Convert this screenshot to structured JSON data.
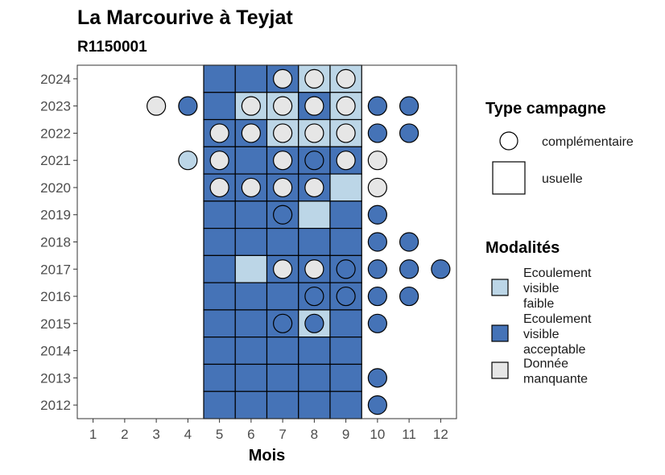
{
  "chart_data": {
    "type": "heatmap",
    "title": "La Marcourive à Teyjat",
    "subtitle": "R1150001",
    "xlabel": "Mois",
    "ylabel": "",
    "x_ticks": [
      "1",
      "2",
      "3",
      "4",
      "5",
      "6",
      "7",
      "8",
      "9",
      "10",
      "11",
      "12"
    ],
    "y_ticks": [
      "2012",
      "2013",
      "2014",
      "2015",
      "2016",
      "2017",
      "2018",
      "2019",
      "2020",
      "2021",
      "2022",
      "2023",
      "2024"
    ],
    "colors": {
      "Ecoulement visible faible": "#bcd6e7",
      "Ecoulement visible acceptable": "#4573b7",
      "Donnée manquante": "#e6e6e6"
    },
    "tiles": [
      {
        "year": 2024,
        "month": 5,
        "modalite": "Ecoulement visible acceptable"
      },
      {
        "year": 2024,
        "month": 6,
        "modalite": "Ecoulement visible acceptable"
      },
      {
        "year": 2024,
        "month": 7,
        "modalite": "Ecoulement visible acceptable"
      },
      {
        "year": 2024,
        "month": 8,
        "modalite": "Ecoulement visible faible"
      },
      {
        "year": 2024,
        "month": 9,
        "modalite": "Ecoulement visible faible"
      },
      {
        "year": 2023,
        "month": 5,
        "modalite": "Ecoulement visible acceptable"
      },
      {
        "year": 2023,
        "month": 6,
        "modalite": "Ecoulement visible faible"
      },
      {
        "year": 2023,
        "month": 7,
        "modalite": "Ecoulement visible faible"
      },
      {
        "year": 2023,
        "month": 8,
        "modalite": "Ecoulement visible acceptable"
      },
      {
        "year": 2023,
        "month": 9,
        "modalite": "Ecoulement visible faible"
      },
      {
        "year": 2022,
        "month": 5,
        "modalite": "Ecoulement visible acceptable"
      },
      {
        "year": 2022,
        "month": 6,
        "modalite": "Ecoulement visible acceptable"
      },
      {
        "year": 2022,
        "month": 7,
        "modalite": "Ecoulement visible faible"
      },
      {
        "year": 2022,
        "month": 8,
        "modalite": "Ecoulement visible faible"
      },
      {
        "year": 2022,
        "month": 9,
        "modalite": "Ecoulement visible faible"
      },
      {
        "year": 2021,
        "month": 5,
        "modalite": "Ecoulement visible acceptable"
      },
      {
        "year": 2021,
        "month": 6,
        "modalite": "Ecoulement visible acceptable"
      },
      {
        "year": 2021,
        "month": 7,
        "modalite": "Ecoulement visible acceptable"
      },
      {
        "year": 2021,
        "month": 8,
        "modalite": "Ecoulement visible acceptable"
      },
      {
        "year": 2021,
        "month": 9,
        "modalite": "Ecoulement visible acceptable"
      },
      {
        "year": 2020,
        "month": 5,
        "modalite": "Ecoulement visible acceptable"
      },
      {
        "year": 2020,
        "month": 6,
        "modalite": "Ecoulement visible acceptable"
      },
      {
        "year": 2020,
        "month": 7,
        "modalite": "Ecoulement visible acceptable"
      },
      {
        "year": 2020,
        "month": 8,
        "modalite": "Ecoulement visible acceptable"
      },
      {
        "year": 2020,
        "month": 9,
        "modalite": "Ecoulement visible faible"
      },
      {
        "year": 2019,
        "month": 5,
        "modalite": "Ecoulement visible acceptable"
      },
      {
        "year": 2019,
        "month": 6,
        "modalite": "Ecoulement visible acceptable"
      },
      {
        "year": 2019,
        "month": 7,
        "modalite": "Ecoulement visible acceptable"
      },
      {
        "year": 2019,
        "month": 8,
        "modalite": "Ecoulement visible faible"
      },
      {
        "year": 2019,
        "month": 9,
        "modalite": "Ecoulement visible acceptable"
      },
      {
        "year": 2018,
        "month": 5,
        "modalite": "Ecoulement visible acceptable"
      },
      {
        "year": 2018,
        "month": 6,
        "modalite": "Ecoulement visible acceptable"
      },
      {
        "year": 2018,
        "month": 7,
        "modalite": "Ecoulement visible acceptable"
      },
      {
        "year": 2018,
        "month": 8,
        "modalite": "Ecoulement visible acceptable"
      },
      {
        "year": 2018,
        "month": 9,
        "modalite": "Ecoulement visible acceptable"
      },
      {
        "year": 2017,
        "month": 5,
        "modalite": "Ecoulement visible acceptable"
      },
      {
        "year": 2017,
        "month": 6,
        "modalite": "Ecoulement visible faible"
      },
      {
        "year": 2017,
        "month": 7,
        "modalite": "Ecoulement visible acceptable"
      },
      {
        "year": 2017,
        "month": 8,
        "modalite": "Ecoulement visible acceptable"
      },
      {
        "year": 2017,
        "month": 9,
        "modalite": "Ecoulement visible acceptable"
      },
      {
        "year": 2016,
        "month": 5,
        "modalite": "Ecoulement visible acceptable"
      },
      {
        "year": 2016,
        "month": 6,
        "modalite": "Ecoulement visible acceptable"
      },
      {
        "year": 2016,
        "month": 7,
        "modalite": "Ecoulement visible acceptable"
      },
      {
        "year": 2016,
        "month": 8,
        "modalite": "Ecoulement visible acceptable"
      },
      {
        "year": 2016,
        "month": 9,
        "modalite": "Ecoulement visible acceptable"
      },
      {
        "year": 2015,
        "month": 5,
        "modalite": "Ecoulement visible acceptable"
      },
      {
        "year": 2015,
        "month": 6,
        "modalite": "Ecoulement visible acceptable"
      },
      {
        "year": 2015,
        "month": 7,
        "modalite": "Ecoulement visible acceptable"
      },
      {
        "year": 2015,
        "month": 8,
        "modalite": "Ecoulement visible faible"
      },
      {
        "year": 2015,
        "month": 9,
        "modalite": "Ecoulement visible acceptable"
      },
      {
        "year": 2014,
        "month": 5,
        "modalite": "Ecoulement visible acceptable"
      },
      {
        "year": 2014,
        "month": 6,
        "modalite": "Ecoulement visible acceptable"
      },
      {
        "year": 2014,
        "month": 7,
        "modalite": "Ecoulement visible acceptable"
      },
      {
        "year": 2014,
        "month": 8,
        "modalite": "Ecoulement visible acceptable"
      },
      {
        "year": 2014,
        "month": 9,
        "modalite": "Ecoulement visible acceptable"
      },
      {
        "year": 2013,
        "month": 5,
        "modalite": "Ecoulement visible acceptable"
      },
      {
        "year": 2013,
        "month": 6,
        "modalite": "Ecoulement visible acceptable"
      },
      {
        "year": 2013,
        "month": 7,
        "modalite": "Ecoulement visible acceptable"
      },
      {
        "year": 2013,
        "month": 8,
        "modalite": "Ecoulement visible acceptable"
      },
      {
        "year": 2013,
        "month": 9,
        "modalite": "Ecoulement visible acceptable"
      },
      {
        "year": 2012,
        "month": 5,
        "modalite": "Ecoulement visible acceptable"
      },
      {
        "year": 2012,
        "month": 6,
        "modalite": "Ecoulement visible acceptable"
      },
      {
        "year": 2012,
        "month": 7,
        "modalite": "Ecoulement visible acceptable"
      },
      {
        "year": 2012,
        "month": 8,
        "modalite": "Ecoulement visible acceptable"
      },
      {
        "year": 2012,
        "month": 9,
        "modalite": "Ecoulement visible acceptable"
      }
    ],
    "points": [
      {
        "year": 2024,
        "month": 7,
        "modalite": "Donnée manquante"
      },
      {
        "year": 2024,
        "month": 8,
        "modalite": "Donnée manquante"
      },
      {
        "year": 2024,
        "month": 9,
        "modalite": "Donnée manquante"
      },
      {
        "year": 2023,
        "month": 3,
        "modalite": "Donnée manquante"
      },
      {
        "year": 2023,
        "month": 4,
        "modalite": "Ecoulement visible acceptable"
      },
      {
        "year": 2023,
        "month": 6,
        "modalite": "Donnée manquante"
      },
      {
        "year": 2023,
        "month": 7,
        "modalite": "Donnée manquante"
      },
      {
        "year": 2023,
        "month": 8,
        "modalite": "Donnée manquante"
      },
      {
        "year": 2023,
        "month": 9,
        "modalite": "Donnée manquante"
      },
      {
        "year": 2023,
        "month": 10,
        "modalite": "Ecoulement visible acceptable"
      },
      {
        "year": 2023,
        "month": 11,
        "modalite": "Ecoulement visible acceptable"
      },
      {
        "year": 2022,
        "month": 5,
        "modalite": "Donnée manquante"
      },
      {
        "year": 2022,
        "month": 6,
        "modalite": "Donnée manquante"
      },
      {
        "year": 2022,
        "month": 7,
        "modalite": "Donnée manquante"
      },
      {
        "year": 2022,
        "month": 8,
        "modalite": "Donnée manquante"
      },
      {
        "year": 2022,
        "month": 9,
        "modalite": "Donnée manquante"
      },
      {
        "year": 2022,
        "month": 10,
        "modalite": "Ecoulement visible acceptable"
      },
      {
        "year": 2022,
        "month": 11,
        "modalite": "Ecoulement visible acceptable"
      },
      {
        "year": 2021,
        "month": 4,
        "modalite": "Ecoulement visible faible"
      },
      {
        "year": 2021,
        "month": 5,
        "modalite": "Donnée manquante"
      },
      {
        "year": 2021,
        "month": 7,
        "modalite": "Donnée manquante"
      },
      {
        "year": 2021,
        "month": 8,
        "modalite": "Ecoulement visible acceptable"
      },
      {
        "year": 2021,
        "month": 9,
        "modalite": "Donnée manquante"
      },
      {
        "year": 2021,
        "month": 10,
        "modalite": "Donnée manquante"
      },
      {
        "year": 2020,
        "month": 5,
        "modalite": "Donnée manquante"
      },
      {
        "year": 2020,
        "month": 6,
        "modalite": "Donnée manquante"
      },
      {
        "year": 2020,
        "month": 7,
        "modalite": "Donnée manquante"
      },
      {
        "year": 2020,
        "month": 8,
        "modalite": "Donnée manquante"
      },
      {
        "year": 2020,
        "month": 10,
        "modalite": "Donnée manquante"
      },
      {
        "year": 2019,
        "month": 7,
        "modalite": "Ecoulement visible acceptable"
      },
      {
        "year": 2019,
        "month": 10,
        "modalite": "Ecoulement visible acceptable"
      },
      {
        "year": 2018,
        "month": 10,
        "modalite": "Ecoulement visible acceptable"
      },
      {
        "year": 2018,
        "month": 11,
        "modalite": "Ecoulement visible acceptable"
      },
      {
        "year": 2017,
        "month": 7,
        "modalite": "Donnée manquante"
      },
      {
        "year": 2017,
        "month": 8,
        "modalite": "Donnée manquante"
      },
      {
        "year": 2017,
        "month": 9,
        "modalite": "Ecoulement visible acceptable"
      },
      {
        "year": 2017,
        "month": 10,
        "modalite": "Ecoulement visible acceptable"
      },
      {
        "year": 2017,
        "month": 11,
        "modalite": "Ecoulement visible acceptable"
      },
      {
        "year": 2017,
        "month": 12,
        "modalite": "Ecoulement visible acceptable"
      },
      {
        "year": 2016,
        "month": 8,
        "modalite": "Ecoulement visible acceptable"
      },
      {
        "year": 2016,
        "month": 9,
        "modalite": "Ecoulement visible acceptable"
      },
      {
        "year": 2016,
        "month": 10,
        "modalite": "Ecoulement visible acceptable"
      },
      {
        "year": 2016,
        "month": 11,
        "modalite": "Ecoulement visible acceptable"
      },
      {
        "year": 2015,
        "month": 7,
        "modalite": "Ecoulement visible acceptable"
      },
      {
        "year": 2015,
        "month": 8,
        "modalite": "Ecoulement visible acceptable"
      },
      {
        "year": 2015,
        "month": 10,
        "modalite": "Ecoulement visible acceptable"
      },
      {
        "year": 2013,
        "month": 10,
        "modalite": "Ecoulement visible acceptable"
      },
      {
        "year": 2012,
        "month": 10,
        "modalite": "Ecoulement visible acceptable"
      }
    ],
    "legend": {
      "shape_title": "Type campagne",
      "shape_items": [
        {
          "label": "complémentaire",
          "shape": "circle"
        },
        {
          "label": "usuelle",
          "shape": "square"
        }
      ],
      "fill_title": "Modalités",
      "fill_items": [
        {
          "lines": [
            "Ecoulement",
            "visible",
            "faible"
          ],
          "key": "Ecoulement visible faible"
        },
        {
          "lines": [
            "Ecoulement",
            "visible",
            "acceptable"
          ],
          "key": "Ecoulement visible acceptable"
        },
        {
          "lines": [
            "Donnée",
            "manquante"
          ],
          "key": "Donnée manquante"
        }
      ],
      "position": "right"
    }
  }
}
